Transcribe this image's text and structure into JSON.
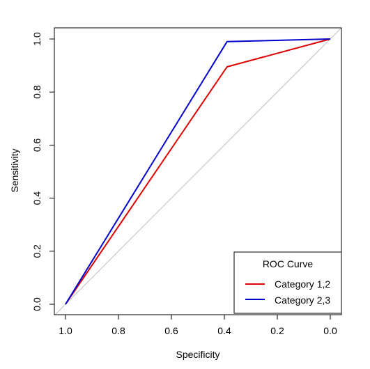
{
  "chart_data": {
    "type": "line",
    "title": "",
    "xlabel": "Specificity",
    "ylabel": "Sensitivity",
    "x_reversed": true,
    "xlim": [
      1.0,
      0.0
    ],
    "ylim": [
      0.0,
      1.0
    ],
    "xticks": [
      1.0,
      0.8,
      0.6,
      0.4,
      0.2,
      0.0
    ],
    "xtick_labels": [
      "1.0",
      "0.8",
      "0.6",
      "0.4",
      "0.2",
      "0.0"
    ],
    "yticks": [
      0.0,
      0.2,
      0.4,
      0.6,
      0.8,
      1.0
    ],
    "ytick_labels": [
      "0.0",
      "0.2",
      "0.4",
      "0.6",
      "0.8",
      "1.0"
    ],
    "grid": false,
    "diagonal_reference": {
      "from": [
        1.0,
        0.0
      ],
      "to": [
        0.0,
        1.0
      ],
      "color": "#bebebe"
    },
    "legend": {
      "title": "ROC Curve",
      "placement": "bottom-right"
    },
    "series": [
      {
        "name": "Category 1,2",
        "color": "#dd0000",
        "points": [
          [
            1.0,
            0.0
          ],
          [
            0.39,
            0.895
          ],
          [
            0.0,
            1.0
          ]
        ]
      },
      {
        "name": "Category 2,3",
        "color": "#0000cc",
        "points": [
          [
            1.0,
            0.0
          ],
          [
            0.39,
            0.99
          ],
          [
            0.0,
            1.0
          ]
        ]
      }
    ]
  }
}
